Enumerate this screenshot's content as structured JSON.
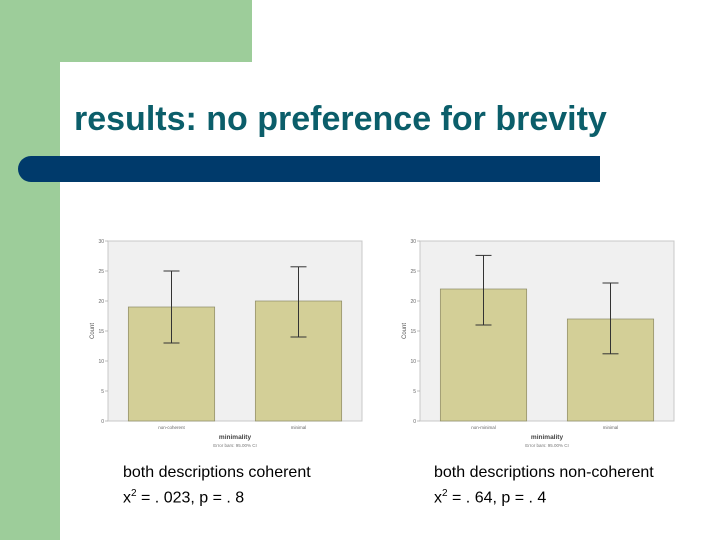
{
  "slide": {
    "title": "results: no preference for brevity",
    "captions": [
      {
        "line1": "both descriptions coherent",
        "stat_prefix": "x",
        "stat_sup": "2",
        "stat_rest": " = . 023, p = . 8"
      },
      {
        "line1": "both descriptions non-coherent",
        "stat_prefix": "x",
        "stat_sup": "2",
        "stat_rest": " = . 64, p = . 4"
      }
    ]
  },
  "colors": {
    "background_green": "#9dcd9a",
    "title_text": "#0b5e6a",
    "title_bar": "#003a6b",
    "plot_background": "#f0f0f0",
    "bar_fill": "#d3cf97"
  },
  "chart_data": [
    {
      "type": "bar",
      "categories": [
        "non-coherent",
        "minimal"
      ],
      "values": [
        19,
        20
      ],
      "error_low": [
        13,
        14
      ],
      "error_high": [
        25,
        25.7
      ],
      "xlabel": "minimality",
      "ylabel": "Count",
      "ylim": [
        0,
        30
      ],
      "yticks": [
        0,
        5,
        10,
        15,
        20,
        25,
        30
      ],
      "footnote": "Error bars: 95.00% CI",
      "grid": false
    },
    {
      "type": "bar",
      "categories": [
        "non-minimal",
        "minimal"
      ],
      "values": [
        22,
        17
      ],
      "error_low": [
        16,
        11.2
      ],
      "error_high": [
        27.6,
        23
      ],
      "xlabel": "minimality",
      "ylabel": "Count",
      "ylim": [
        0,
        30
      ],
      "yticks": [
        0,
        5,
        10,
        15,
        20,
        25,
        30
      ],
      "footnote": "Error bars: 95.00% CI",
      "grid": false
    }
  ]
}
